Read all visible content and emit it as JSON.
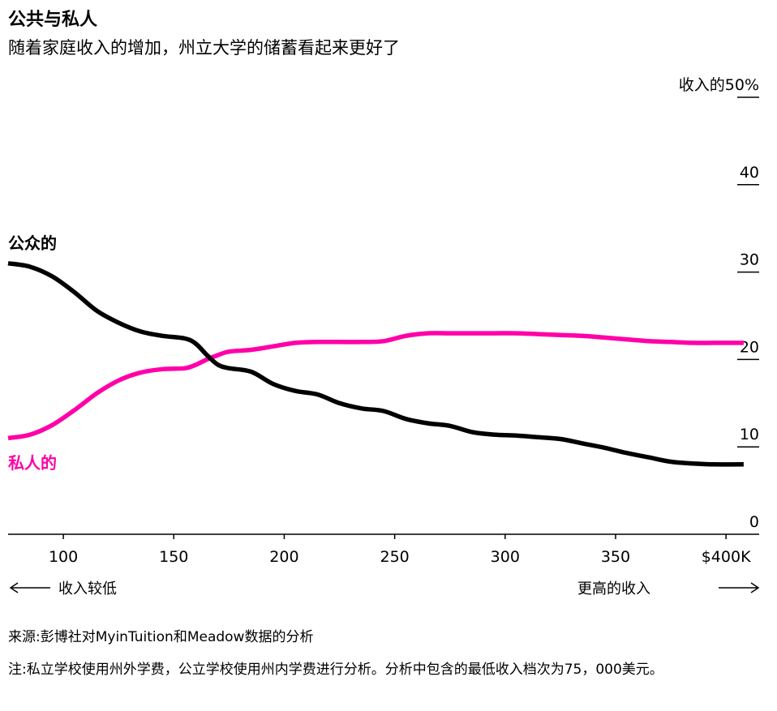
{
  "title": "公共与私人",
  "subtitle": "随着家庭收入的增加，州立大学的储蓄看起来更好了",
  "chart_data": {
    "type": "line",
    "x_ticks": [
      100,
      150,
      200,
      250,
      300,
      350,
      400
    ],
    "x_tick_labels": [
      "100",
      "150",
      "200",
      "250",
      "300",
      "350",
      "$400K"
    ],
    "xlim": [
      75,
      415
    ],
    "x_axis_caption_left": "收入较低",
    "x_axis_caption_right": "更高的收入",
    "ylim": [
      0,
      50
    ],
    "y_tick_labels": [
      "0",
      "10",
      "20",
      "30",
      "40",
      "收入的50%"
    ],
    "grid": false,
    "series": [
      {
        "name": "公众的",
        "color": "#000000",
        "x": [
          75,
          85,
          95,
          105,
          115,
          125,
          135,
          145,
          155,
          160,
          165,
          170,
          175,
          185,
          195,
          205,
          215,
          225,
          235,
          245,
          255,
          265,
          275,
          285,
          295,
          305,
          315,
          325,
          335,
          345,
          355,
          365,
          375,
          385,
          395,
          408
        ],
        "y": [
          31.0,
          30.6,
          29.5,
          27.7,
          25.6,
          24.2,
          23.2,
          22.7,
          22.4,
          21.8,
          20.5,
          19.4,
          19.0,
          18.6,
          17.2,
          16.4,
          16.0,
          15.0,
          14.4,
          14.1,
          13.2,
          12.7,
          12.4,
          11.7,
          11.4,
          11.3,
          11.1,
          10.9,
          10.4,
          9.9,
          9.3,
          8.8,
          8.3,
          8.1,
          8.0,
          8.0
        ]
      },
      {
        "name": "私人的",
        "color": "#ff00a8",
        "x": [
          75,
          85,
          95,
          105,
          115,
          125,
          135,
          145,
          155,
          160,
          165,
          170,
          175,
          185,
          195,
          205,
          215,
          225,
          235,
          245,
          255,
          265,
          275,
          285,
          295,
          305,
          315,
          325,
          335,
          345,
          355,
          365,
          375,
          385,
          395,
          408
        ],
        "y": [
          11.0,
          11.4,
          12.5,
          14.2,
          16.1,
          17.6,
          18.5,
          18.9,
          19.0,
          19.4,
          20.0,
          20.5,
          20.9,
          21.1,
          21.5,
          21.9,
          22.0,
          22.0,
          22.0,
          22.1,
          22.7,
          23.0,
          23.0,
          23.0,
          23.0,
          23.0,
          22.9,
          22.8,
          22.7,
          22.5,
          22.3,
          22.1,
          22.0,
          21.9,
          21.9,
          21.9
        ]
      }
    ]
  },
  "source": "来源:彭博社对MyinTuition和Meadow数据的分析",
  "note": "注:私立学校使用州外学费，公立学校使用州内学费进行分析。分析中包含的最低收入档次为75，000美元。"
}
